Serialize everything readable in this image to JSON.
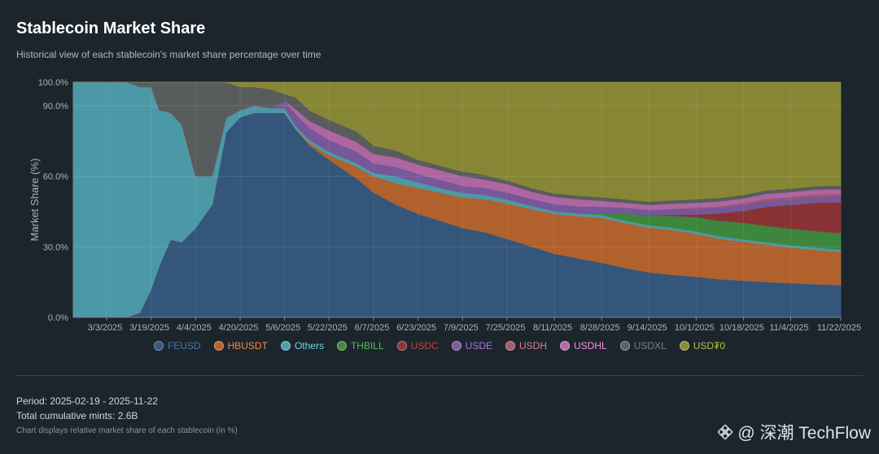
{
  "header": {
    "title": "Stablecoin Market Share",
    "subtitle": "Historical view of each stablecoin's market share percentage over time"
  },
  "footer": {
    "period": "Period: 2025-02-19 - 2025-11-22",
    "mints": "Total cumulative mints: 2.6B",
    "note": "Chart displays relative market share of each stablecoin (in %)"
  },
  "watermark": {
    "text": "@ 深潮 TechFlow"
  },
  "chart_data": {
    "type": "area",
    "stacked": true,
    "ylabel": "Market Share (%)",
    "ylim": [
      0,
      100
    ],
    "yticks": [
      0,
      30,
      60,
      90,
      100
    ],
    "ytick_labels": [
      "0.0%",
      "30.0%",
      "60.0%",
      "90.0%",
      "100.0%"
    ],
    "xlim": [
      "2025-02-19",
      "2025-11-22"
    ],
    "xticks": [
      "2025-03-03",
      "2025-03-19",
      "2025-04-04",
      "2025-04-20",
      "2025-05-06",
      "2025-05-22",
      "2025-06-07",
      "2025-06-23",
      "2025-07-09",
      "2025-07-25",
      "2025-08-11",
      "2025-08-28",
      "2025-09-14",
      "2025-10-01",
      "2025-10-18",
      "2025-11-04",
      "2025-11-22"
    ],
    "xtick_labels": [
      "3/3/2025",
      "3/19/2025",
      "4/4/2025",
      "4/20/2025",
      "5/6/2025",
      "5/22/2025",
      "6/7/2025",
      "6/23/2025",
      "7/9/2025",
      "7/25/2025",
      "8/11/2025",
      "8/28/2025",
      "9/14/2025",
      "10/1/2025",
      "10/18/2025",
      "11/4/2025",
      "11/22/2025"
    ],
    "legend_position": "bottom",
    "dates": [
      "2025-02-19",
      "2025-03-03",
      "2025-03-10",
      "2025-03-15",
      "2025-03-19",
      "2025-03-22",
      "2025-03-26",
      "2025-03-30",
      "2025-04-04",
      "2025-04-10",
      "2025-04-15",
      "2025-04-20",
      "2025-04-25",
      "2025-05-01",
      "2025-05-06",
      "2025-05-10",
      "2025-05-15",
      "2025-05-22",
      "2025-06-01",
      "2025-06-07",
      "2025-06-15",
      "2025-06-23",
      "2025-07-01",
      "2025-07-09",
      "2025-07-17",
      "2025-07-25",
      "2025-08-03",
      "2025-08-11",
      "2025-08-20",
      "2025-08-28",
      "2025-09-05",
      "2025-09-14",
      "2025-09-22",
      "2025-10-01",
      "2025-10-09",
      "2025-10-18",
      "2025-10-26",
      "2025-11-04",
      "2025-11-13",
      "2025-11-22"
    ],
    "series": [
      {
        "name": "FEUSD",
        "color": "#35597f",
        "values": [
          0,
          0,
          0,
          2,
          12,
          22,
          33,
          32,
          38,
          48,
          78,
          85,
          87,
          87,
          87,
          80,
          73,
          67,
          59,
          53,
          48,
          44,
          41,
          38,
          36,
          33,
          30,
          27,
          25,
          23,
          21,
          19,
          18,
          17,
          16,
          15.5,
          15,
          14.5,
          14,
          13.5
        ]
      },
      {
        "name": "HBUSDT",
        "color": "#b8652d",
        "values": [
          0,
          0,
          0,
          0,
          0,
          0,
          0,
          0,
          0,
          0,
          0,
          0,
          0,
          0,
          0,
          0,
          1,
          2,
          5,
          7,
          9,
          11,
          12,
          13,
          14,
          15,
          16,
          17,
          18,
          19,
          19,
          19,
          19,
          18,
          17,
          16.5,
          16,
          15,
          14.5,
          14
        ]
      },
      {
        "name": "Others",
        "color": "#4ea0ae",
        "values": [
          100,
          100,
          100,
          96,
          86,
          66,
          54,
          50,
          22,
          12,
          6,
          3,
          3,
          2,
          2,
          1.5,
          1.5,
          1.5,
          1.5,
          1.5,
          3,
          2.5,
          2,
          2,
          1.8,
          1.6,
          1.4,
          1.2,
          1.2,
          1.1,
          1,
          1,
          1,
          1,
          1,
          1,
          1,
          1,
          1,
          1
        ]
      },
      {
        "name": "THBILL",
        "color": "#3f8c3e",
        "values": [
          0,
          0,
          0,
          0,
          0,
          0,
          0,
          0,
          0,
          0,
          0,
          0,
          0,
          0,
          0,
          0,
          0,
          0,
          0,
          0,
          0,
          0,
          0,
          0,
          0,
          0,
          0,
          0,
          0,
          1,
          3,
          4,
          5,
          6,
          6.5,
          7,
          7,
          7,
          7,
          7
        ]
      },
      {
        "name": "USDC",
        "color": "#8f3335",
        "values": [
          0,
          0,
          0,
          0,
          0,
          0,
          0,
          0,
          0,
          0,
          0,
          0,
          0,
          0,
          0,
          0,
          0,
          0,
          0,
          0,
          0,
          0,
          0,
          0,
          0,
          0,
          0,
          0,
          0,
          0,
          0,
          0,
          0.5,
          1,
          3,
          5,
          8,
          10,
          12,
          13
        ]
      },
      {
        "name": "USDE",
        "color": "#7a5aa0",
        "values": [
          0,
          0,
          0,
          0,
          0,
          0,
          0,
          0,
          0,
          0,
          0,
          0,
          0,
          0,
          3,
          5,
          5,
          5,
          5,
          4,
          4,
          3.5,
          3.5,
          3,
          3,
          3,
          3,
          3,
          3,
          2.5,
          2.5,
          2.5,
          2.5,
          2.5,
          2.5,
          2.5,
          2.5,
          2.5,
          2.5,
          2.5
        ]
      },
      {
        "name": "USDH",
        "color": "#a55a70",
        "values": [
          0,
          0,
          0,
          0,
          0,
          0,
          0,
          0,
          0,
          0,
          0,
          0,
          0,
          0,
          0,
          0,
          0,
          0,
          0,
          0,
          0,
          0,
          0,
          0,
          0,
          0,
          0,
          0,
          0,
          0,
          0,
          0,
          0,
          0.5,
          0.5,
          0.8,
          1,
          1,
          1,
          1
        ]
      },
      {
        "name": "USDHL",
        "color": "#b56aa9",
        "values": [
          0,
          0,
          0,
          0,
          0,
          0,
          0,
          0,
          0,
          0,
          0,
          0,
          0,
          0,
          0,
          2,
          3,
          4,
          4,
          4,
          4,
          4,
          4,
          4,
          3.5,
          3.5,
          3,
          3,
          3,
          2.5,
          2,
          2,
          2,
          2,
          2,
          2,
          2,
          2,
          2,
          2
        ]
      },
      {
        "name": "USDXL",
        "color": "#5d5f60",
        "values": [
          0,
          0,
          0,
          2,
          2,
          12,
          13,
          18,
          40,
          40,
          15,
          10,
          8,
          8,
          3,
          5,
          4.5,
          4.5,
          4.5,
          3.5,
          3,
          2,
          2,
          2,
          2,
          1.5,
          1.5,
          1.5,
          1.5,
          1.5,
          1.5,
          1.5,
          1.5,
          1.5,
          1.5,
          1.5,
          1.5,
          1.5,
          1.5,
          1.5
        ]
      },
      {
        "name": "USD₮0",
        "color": "#8c8c36",
        "values": [
          0,
          0,
          0,
          0,
          0,
          0,
          0,
          0,
          0,
          0,
          0,
          2,
          2,
          3,
          5,
          6.5,
          12,
          16,
          21,
          27,
          29,
          33,
          35.5,
          38,
          39.2,
          41.4,
          45.1,
          47.3,
          48.3,
          48.4,
          49.5,
          50.5,
          50,
          49,
          48.5,
          47.7,
          46,
          45,
          44,
          43.5
        ]
      }
    ]
  }
}
